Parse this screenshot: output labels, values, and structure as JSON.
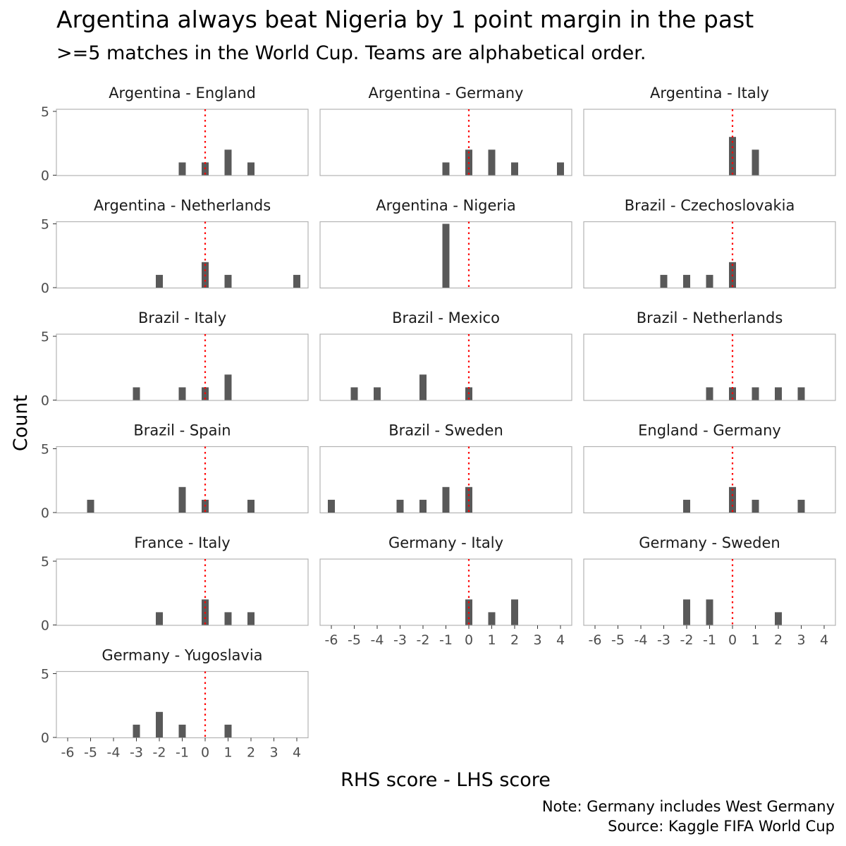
{
  "title": "Argentina always beat Nigeria by 1 point margin in the past",
  "subtitle": ">=5 matches in the World Cup. Teams are alphabetical order.",
  "caption": [
    "Note: Germany includes West Germany",
    "Source: Kaggle FIFA World Cup"
  ],
  "colors": {
    "bar": "#595959",
    "reference_line": "#ff0000",
    "panel_border": "#b3b3b3",
    "tick_text": "#4d4d4d"
  },
  "chart_data": {
    "type": "bar",
    "xlabel": "RHS score - LHS score",
    "ylabel": "Count",
    "xlim": [
      -6,
      4
    ],
    "ylim": [
      0,
      5
    ],
    "x_ticks": [
      -6,
      -5,
      -4,
      -3,
      -2,
      -1,
      0,
      1,
      2,
      3,
      4
    ],
    "y_ticks": [
      0,
      5
    ],
    "reference_line": {
      "x": 0,
      "style": "dotted",
      "color": "red"
    },
    "grid": false,
    "panels": [
      {
        "name": "Argentina - England",
        "x": [
          -1,
          0,
          1,
          2
        ],
        "values": [
          1,
          1,
          2,
          1
        ]
      },
      {
        "name": "Argentina - Germany",
        "x": [
          -1,
          0,
          1,
          2,
          4
        ],
        "values": [
          1,
          2,
          2,
          1,
          1
        ]
      },
      {
        "name": "Argentina - Italy",
        "x": [
          0,
          1
        ],
        "values": [
          3,
          2
        ]
      },
      {
        "name": "Argentina - Netherlands",
        "x": [
          -2,
          0,
          1,
          4
        ],
        "values": [
          1,
          2,
          1,
          1
        ]
      },
      {
        "name": "Argentina - Nigeria",
        "x": [
          -1
        ],
        "values": [
          5
        ]
      },
      {
        "name": "Brazil - Czechoslovakia",
        "x": [
          -3,
          -2,
          -1,
          0
        ],
        "values": [
          1,
          1,
          1,
          2
        ]
      },
      {
        "name": "Brazil - Italy",
        "x": [
          -3,
          -1,
          0,
          1
        ],
        "values": [
          1,
          1,
          1,
          2
        ]
      },
      {
        "name": "Brazil - Mexico",
        "x": [
          -5,
          -4,
          -2,
          0
        ],
        "values": [
          1,
          1,
          2,
          1
        ]
      },
      {
        "name": "Brazil - Netherlands",
        "x": [
          -1,
          0,
          1,
          2,
          3
        ],
        "values": [
          1,
          1,
          1,
          1,
          1
        ]
      },
      {
        "name": "Brazil - Spain",
        "x": [
          -5,
          -1,
          0,
          2
        ],
        "values": [
          1,
          2,
          1,
          1
        ]
      },
      {
        "name": "Brazil - Sweden",
        "x": [
          -6,
          -3,
          -2,
          -1,
          0
        ],
        "values": [
          1,
          1,
          1,
          2,
          2
        ]
      },
      {
        "name": "England - Germany",
        "x": [
          -2,
          0,
          1,
          3
        ],
        "values": [
          1,
          2,
          1,
          1
        ]
      },
      {
        "name": "France - Italy",
        "x": [
          -2,
          0,
          1,
          2
        ],
        "values": [
          1,
          2,
          1,
          1
        ]
      },
      {
        "name": "Germany - Italy",
        "x": [
          0,
          1,
          2
        ],
        "values": [
          2,
          1,
          2
        ]
      },
      {
        "name": "Germany - Sweden",
        "x": [
          -2,
          -1,
          2
        ],
        "values": [
          2,
          2,
          1
        ]
      },
      {
        "name": "Germany - Yugoslavia",
        "x": [
          -3,
          -2,
          -1,
          1
        ],
        "values": [
          1,
          2,
          1,
          1
        ]
      }
    ]
  }
}
